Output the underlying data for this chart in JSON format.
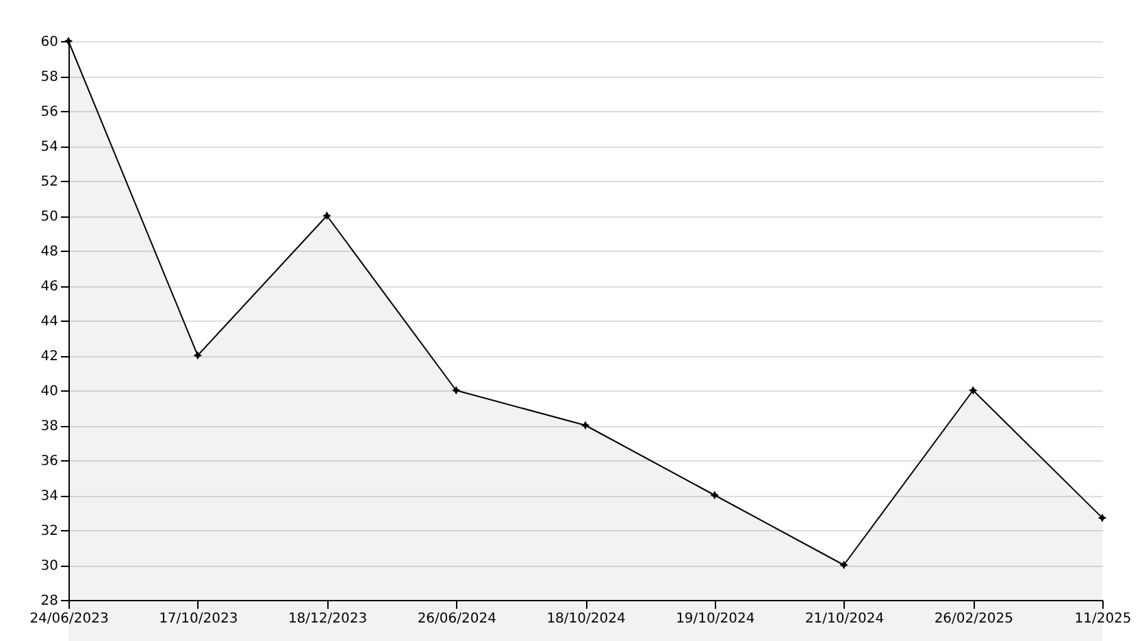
{
  "chart_data": {
    "type": "area",
    "categories": [
      "24/06/2023",
      "17/10/2023",
      "18/12/2023",
      "26/06/2024",
      "18/10/2024",
      "19/10/2024",
      "21/10/2024",
      "26/02/2025",
      "11/2025"
    ],
    "series": [
      {
        "color": "#000000",
        "values": [
          60,
          42,
          50,
          40,
          38,
          34,
          30,
          40,
          32.7
        ]
      }
    ],
    "ylim": [
      28,
      60
    ],
    "yticks": [
      28,
      30,
      32,
      34,
      36,
      38,
      40,
      42,
      44,
      46,
      48,
      50,
      52,
      54,
      56,
      58,
      60
    ],
    "grid": "y",
    "marker": "star",
    "line_style": "solid"
  }
}
